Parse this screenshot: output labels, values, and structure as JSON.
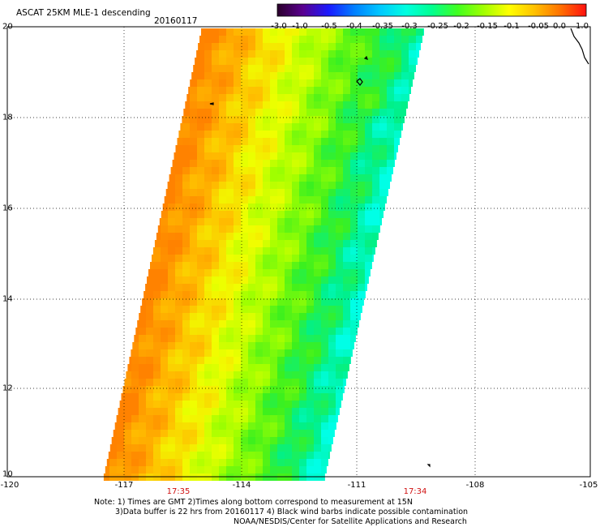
{
  "header": {
    "title": "ASCAT 25KM MLE-1 descending",
    "date": "20160117"
  },
  "colorbar": {
    "labels": [
      "-3.0",
      "-1.0",
      "-0.5",
      "-0.4",
      "-0.35",
      "-0.3",
      "-0.25",
      "-0.2",
      "-0.15",
      "-0.1",
      "-0.05",
      "0.0",
      "1.0"
    ],
    "colors": [
      "#2a002a",
      "#5a0090",
      "#1a1aff",
      "#0080ff",
      "#00c8ff",
      "#00ffe0",
      "#00ff90",
      "#40ff20",
      "#a0ff00",
      "#ffff00",
      "#ffc000",
      "#ff7000",
      "#ff1010"
    ]
  },
  "map": {
    "lat_labels": [
      "20",
      "18",
      "16",
      "14",
      "12",
      "10"
    ],
    "lon_labels": [
      "-120",
      "-117",
      "-114",
      "-111",
      "-108",
      "-105"
    ],
    "time_labels": [
      "17:35",
      "17:34"
    ]
  },
  "notes": {
    "line1": "Note: 1) Times are GMT 2)Times along bottom correspond to measurement at 15N",
    "line2": "3)Data buffer is 22 hrs from 20160117 4) Black wind barbs indicate possible contamination",
    "line3": "NOAA/NESDIS/Center for Satellite Applications and Research"
  }
}
